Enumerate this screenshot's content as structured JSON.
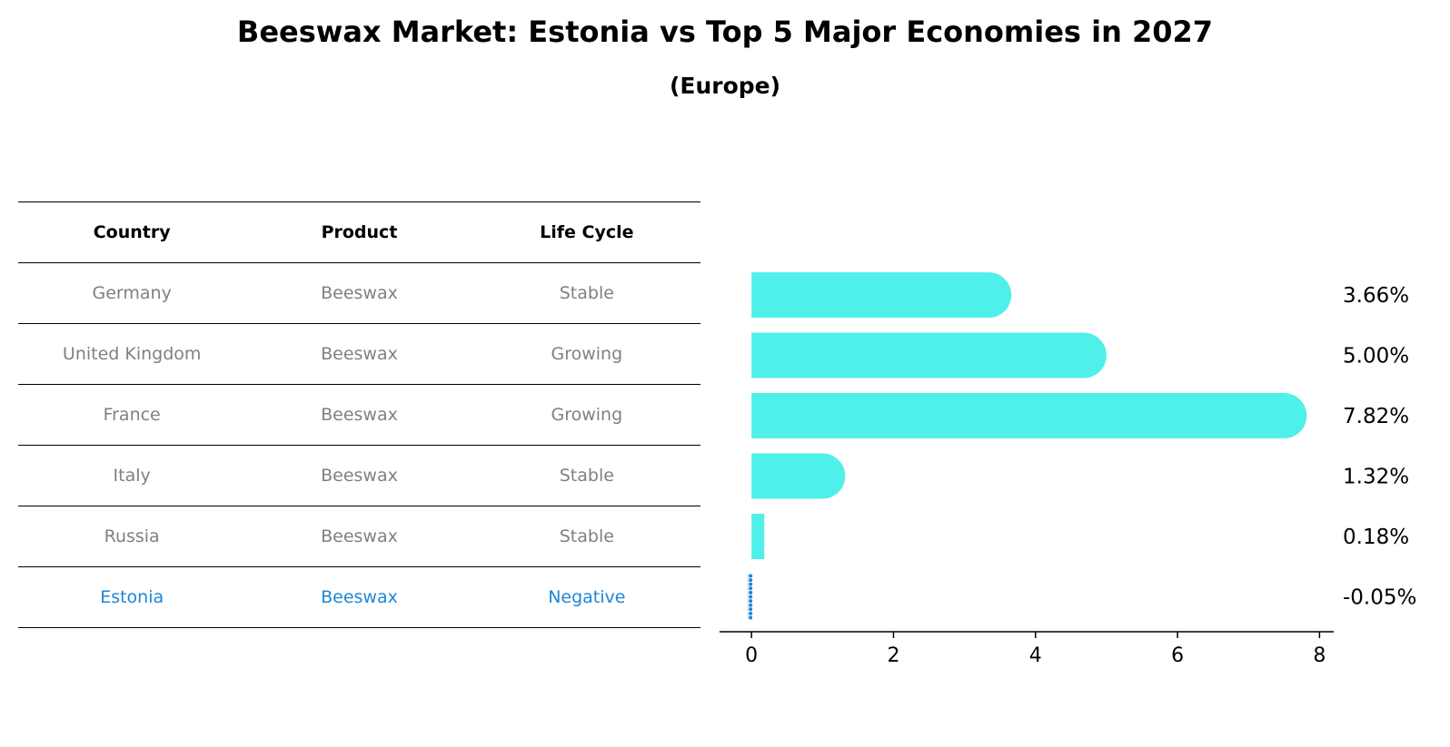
{
  "title": "Beeswax Market: Estonia vs Top 5 Major Economies in 2027",
  "subtitle": "(Europe)",
  "table": {
    "headers": [
      "Country",
      "Product",
      "Life Cycle"
    ],
    "rows": [
      {
        "country": "Germany",
        "product": "Beeswax",
        "life_cycle": "Stable"
      },
      {
        "country": "United Kingdom",
        "product": "Beeswax",
        "life_cycle": "Growing"
      },
      {
        "country": "France",
        "product": "Beeswax",
        "life_cycle": "Growing"
      },
      {
        "country": "Italy",
        "product": "Beeswax",
        "life_cycle": "Stable"
      },
      {
        "country": "Russia",
        "product": "Beeswax",
        "life_cycle": "Stable"
      },
      {
        "country": "Estonia",
        "product": "Beeswax",
        "life_cycle": "Negative"
      }
    ]
  },
  "colors": {
    "bar": "#4ff0ea",
    "highlight": "#1f86d6",
    "muted_text": "#808080"
  },
  "chart_data": {
    "type": "bar",
    "orientation": "horizontal",
    "categories": [
      "Germany",
      "United Kingdom",
      "France",
      "Italy",
      "Russia",
      "Estonia"
    ],
    "values": [
      3.66,
      5.0,
      7.82,
      1.32,
      0.18,
      -0.05
    ],
    "value_labels": [
      "3.66%",
      "5.00%",
      "7.82%",
      "1.32%",
      "0.18%",
      "-0.05%"
    ],
    "xticks": [
      0,
      2,
      4,
      6,
      8
    ],
    "xlim": [
      -0.45,
      8.2
    ],
    "grid": false,
    "legend": "none"
  }
}
